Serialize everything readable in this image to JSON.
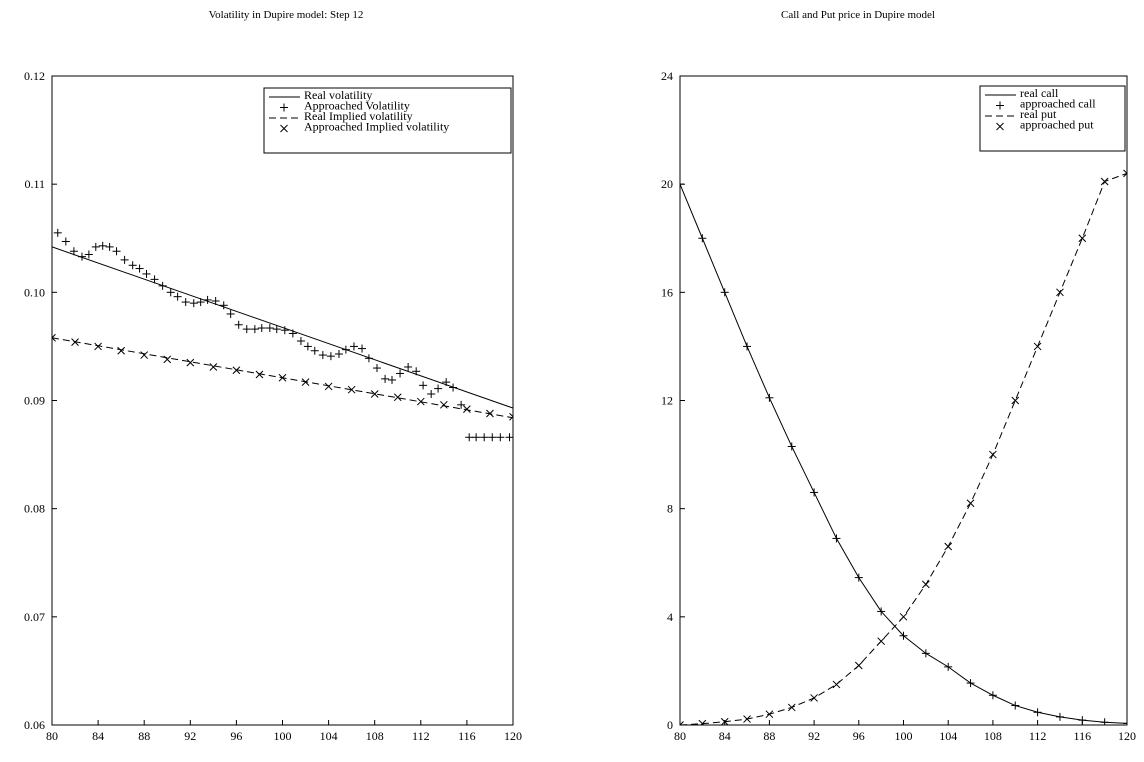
{
  "chart_data": [
    {
      "type": "line",
      "title": "Volatility in Dupire model: Step 12",
      "xlabel": "",
      "ylabel": "",
      "xlim": [
        80,
        120
      ],
      "ylim": [
        0.06,
        0.12
      ],
      "x_ticks": [
        "80",
        "84",
        "88",
        "92",
        "96",
        "100",
        "104",
        "108",
        "112",
        "116",
        "120"
      ],
      "y_ticks": [
        "0.06",
        "0.07",
        "0.08",
        "0.09",
        "0.10",
        "0.11",
        "0.12"
      ],
      "legend_position": "top-right",
      "grid": false,
      "series": [
        {
          "name": "Real volatility",
          "style": "solid-line",
          "x": [
            80,
            120
          ],
          "values": [
            0.1042,
            0.0893
          ]
        },
        {
          "name": "Approached Volatility",
          "style": "plus-marker",
          "x": [
            80.5,
            81.2,
            81.9,
            82.6,
            83.2,
            83.8,
            84.4,
            85.0,
            85.6,
            86.3,
            87.0,
            87.6,
            88.2,
            88.9,
            89.6,
            90.3,
            90.9,
            91.6,
            92.3,
            92.9,
            93.5,
            94.2,
            94.9,
            95.5,
            96.2,
            96.9,
            97.6,
            98.2,
            98.9,
            99.5,
            100.2,
            100.9,
            101.6,
            102.2,
            102.8,
            103.5,
            104.2,
            104.9,
            105.5,
            106.2,
            106.9,
            107.5,
            108.2,
            108.9,
            109.5,
            110.2,
            110.9,
            111.6,
            112.2,
            112.9,
            113.5,
            114.2,
            114.8,
            115.5,
            116.2,
            116.8,
            117.5,
            118.2,
            118.9,
            119.7
          ],
          "values": [
            0.1055,
            0.1047,
            0.1038,
            0.1033,
            0.1035,
            0.1042,
            0.1043,
            0.1042,
            0.1038,
            0.103,
            0.1025,
            0.1022,
            0.1017,
            0.1012,
            0.1006,
            0.1,
            0.0996,
            0.0991,
            0.099,
            0.0991,
            0.0993,
            0.0992,
            0.0988,
            0.098,
            0.097,
            0.0966,
            0.0966,
            0.0967,
            0.0967,
            0.0966,
            0.0965,
            0.0962,
            0.0955,
            0.095,
            0.0946,
            0.0942,
            0.0941,
            0.0943,
            0.0947,
            0.095,
            0.0948,
            0.0939,
            0.093,
            0.092,
            0.0919,
            0.0925,
            0.0931,
            0.0927,
            0.0914,
            0.0906,
            0.0911,
            0.0917,
            0.0912,
            0.0896,
            0.0866,
            0.0866,
            0.0866,
            0.0866,
            0.0866,
            0.0866
          ]
        },
        {
          "name": "Real Implied volatility",
          "style": "dashed-line",
          "x": [
            80,
            120
          ],
          "values": [
            0.0958,
            0.0884
          ]
        },
        {
          "name": "Approached Implied volatility",
          "style": "x-marker",
          "x": [
            80,
            82,
            84,
            86,
            88,
            90,
            92,
            94,
            96,
            98,
            100,
            102,
            104,
            106,
            108,
            110,
            112,
            114,
            116,
            118,
            120
          ],
          "values": [
            0.0958,
            0.0954,
            0.095,
            0.0946,
            0.0942,
            0.0938,
            0.0935,
            0.0931,
            0.0928,
            0.0924,
            0.0921,
            0.0917,
            0.0913,
            0.091,
            0.0906,
            0.0903,
            0.0899,
            0.0896,
            0.0892,
            0.0888,
            0.0885
          ]
        }
      ]
    },
    {
      "type": "line",
      "title": "Call and Put price in Dupire model",
      "xlabel": "",
      "ylabel": "",
      "xlim": [
        80,
        120
      ],
      "ylim": [
        0,
        24
      ],
      "x_ticks": [
        "80",
        "84",
        "88",
        "92",
        "96",
        "100",
        "104",
        "108",
        "112",
        "116",
        "120"
      ],
      "y_ticks": [
        "0",
        "4",
        "8",
        "12",
        "16",
        "20",
        "24"
      ],
      "legend_position": "top-right",
      "grid": false,
      "series": [
        {
          "name": "real call",
          "style": "solid-line",
          "x": [
            80,
            82,
            84,
            86,
            88,
            90,
            92,
            94,
            96,
            98,
            100,
            102,
            104,
            106,
            108,
            110,
            112,
            114,
            116,
            118,
            120
          ],
          "values": [
            20.0,
            18.0,
            16.0,
            14.0,
            12.1,
            10.3,
            8.6,
            6.9,
            5.45,
            4.2,
            3.3,
            2.65,
            2.15,
            1.55,
            1.1,
            0.72,
            0.47,
            0.3,
            0.18,
            0.1,
            0.06
          ]
        },
        {
          "name": "approached call",
          "style": "plus-marker",
          "x": [
            80,
            82,
            84,
            86,
            88,
            90,
            92,
            94,
            96,
            98,
            100,
            102,
            104,
            106,
            108,
            110,
            112,
            114,
            116,
            118,
            120
          ],
          "values": [
            20.0,
            18.0,
            16.0,
            14.0,
            12.1,
            10.3,
            8.6,
            6.9,
            5.45,
            4.2,
            3.3,
            2.65,
            2.15,
            1.55,
            1.1,
            0.72,
            0.47,
            0.3,
            0.18,
            0.1,
            0.06
          ]
        },
        {
          "name": "real put",
          "style": "dashed-line",
          "x": [
            80,
            82,
            84,
            86,
            88,
            90,
            92,
            94,
            96,
            98,
            100,
            102,
            104,
            106,
            108,
            110,
            112,
            114,
            116,
            118,
            120
          ],
          "values": [
            0.0,
            0.05,
            0.12,
            0.22,
            0.4,
            0.65,
            1.0,
            1.5,
            2.2,
            3.1,
            4.0,
            5.2,
            6.6,
            8.2,
            10.0,
            12.0,
            14.0,
            16.0,
            18.0,
            20.1,
            20.4
          ]
        },
        {
          "name": "approached put",
          "style": "x-marker",
          "x": [
            80,
            82,
            84,
            86,
            88,
            90,
            92,
            94,
            96,
            98,
            100,
            102,
            104,
            106,
            108,
            110,
            112,
            114,
            116,
            118,
            120
          ],
          "values": [
            0.0,
            0.05,
            0.12,
            0.22,
            0.4,
            0.65,
            1.0,
            1.5,
            2.2,
            3.1,
            4.0,
            5.2,
            6.6,
            8.2,
            10.0,
            12.0,
            14.0,
            16.0,
            18.0,
            20.1,
            20.4
          ]
        }
      ]
    }
  ]
}
